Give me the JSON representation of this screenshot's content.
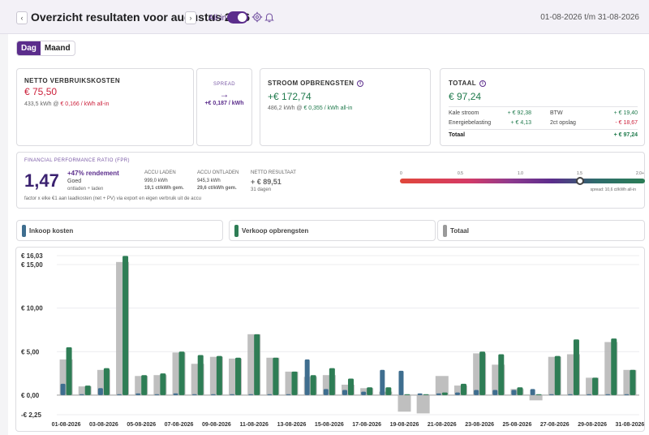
{
  "header": {
    "title": "Overzicht resultaten voor augustus 2026",
    "prev_label": "‹",
    "next_label": "›",
    "allin_label": "All-in",
    "date_range": "01-08-2026 t/m 31-08-2026"
  },
  "view_tabs": [
    {
      "label": "Dag",
      "active": true
    },
    {
      "label": "Maand",
      "active": false
    }
  ],
  "kosten": {
    "title": "NETTO VERBRUIKSKOSTEN",
    "value": "€ 75,50",
    "detail_a": "433,5 kWh @ ",
    "detail_b": "€ 0,166 / kWh all-in"
  },
  "spread": {
    "title": "SPREAD",
    "arrow": "→",
    "value": "+€ 0,187 / kWh"
  },
  "opbrengsten": {
    "title": "STROOM OPBRENGSTEN",
    "value": "+€ 172,74",
    "detail_a": "486,2 kWh @ ",
    "detail_b": "€ 0,355 / kWh all-in"
  },
  "totaal": {
    "title": "TOTAAL",
    "value": "€ 97,24",
    "rows": [
      {
        "label": "Kale stroom",
        "value": "+ € 92,38",
        "label2": "BTW",
        "value2": "+ € 19,40"
      },
      {
        "label": "Energiebelasting",
        "value": "+ € 4,13",
        "label2": "2ct opslag",
        "value2": "- € 18,67"
      }
    ],
    "total_label": "Totaal",
    "total_value": "+ € 97,24"
  },
  "fpr": {
    "title": "FINANCIAL PERFORMANCE RATIO (FPR)",
    "ratio": "1,47",
    "rendement": "+47% rendement",
    "rating": "Goed",
    "subline": "ontladen ÷ laden",
    "footnote": "factor x elke €1 aan laadkosten (net + PV) via export en eigen verbruik uit de accu",
    "accu_laden_label": "ACCU LADEN",
    "accu_laden_kwh": "999,0 kWh",
    "accu_laden_price": "19,1 ct/kWh gem.",
    "accu_ontladen_label": "ACCU ONTLADEN",
    "accu_ontladen_kwh": "945,3 kWh",
    "accu_ontladen_price": "29,6 ct/kWh gem.",
    "netto_label": "NETTO RESULTAAT",
    "netto_value": "+ € 89,51",
    "netto_days": "31 dagen",
    "scale_ticks": [
      "0",
      "0.5",
      "1.0",
      "1.5",
      "2.0+"
    ],
    "scale_note": "spread: 10,6 ct/kWh all-in",
    "marker_value": 1.47
  },
  "legend": [
    {
      "label": "Inkoop kosten",
      "color": "#3f6e8f"
    },
    {
      "label": "Verkoop opbrengsten",
      "color": "#2e7d55"
    },
    {
      "label": "Totaal",
      "color": "#9a9a9a"
    }
  ],
  "chart_data": {
    "type": "bar",
    "x": [
      "01-08-2026",
      "02-08-2026",
      "03-08-2026",
      "04-08-2026",
      "05-08-2026",
      "06-08-2026",
      "07-08-2026",
      "08-08-2026",
      "09-08-2026",
      "10-08-2026",
      "11-08-2026",
      "12-08-2026",
      "13-08-2026",
      "14-08-2026",
      "15-08-2026",
      "16-08-2026",
      "17-08-2026",
      "18-08-2026",
      "19-08-2026",
      "20-08-2026",
      "21-08-2026",
      "22-08-2026",
      "23-08-2026",
      "24-08-2026",
      "25-08-2026",
      "26-08-2026",
      "27-08-2026",
      "28-08-2026",
      "29-08-2026",
      "30-08-2026",
      "31-08-2026"
    ],
    "tick_labels": [
      "01-08-2026",
      "03-08-2026",
      "05-08-2026",
      "07-08-2026",
      "09-08-2026",
      "11-08-2026",
      "13-08-2026",
      "15-08-2026",
      "17-08-2026",
      "19-08-2026",
      "21-08-2026",
      "23-08-2026",
      "25-08-2026",
      "27-08-2026",
      "29-08-2026",
      "31-08-2026"
    ],
    "y_ticks": [
      {
        "value": 16.03,
        "label": "€ 16,03"
      },
      {
        "value": 15,
        "label": "€ 15,00"
      },
      {
        "value": 10,
        "label": "€ 10,00"
      },
      {
        "value": 5,
        "label": "€ 5,00"
      },
      {
        "value": 0,
        "label": "€ 0,00"
      },
      {
        "value": -2.25,
        "label": "-€ 2,25"
      }
    ],
    "ylim": [
      -2.25,
      16.03
    ],
    "series": [
      {
        "name": "Inkoop kosten",
        "color": "#3f6e8f",
        "values": [
          1.3,
          0.1,
          0.8,
          0.1,
          0.2,
          0.1,
          0.2,
          0.1,
          0.1,
          0.1,
          0.1,
          0.1,
          0.1,
          4.1,
          0.7,
          0.6,
          0.4,
          2.9,
          2.8,
          0.2,
          0.2,
          0.3,
          0.6,
          0.6,
          0.6,
          0.7,
          0.1,
          0.1,
          0.1,
          0.1,
          0.1
        ]
      },
      {
        "name": "Verkoop opbrengsten",
        "color": "#2e7d55",
        "values": [
          5.5,
          1.1,
          3.1,
          16.0,
          2.3,
          2.5,
          5.0,
          4.6,
          4.5,
          4.3,
          7.0,
          4.3,
          2.7,
          2.3,
          3.1,
          1.9,
          0.9,
          0.9,
          0.1,
          0.1,
          0.3,
          1.3,
          5.0,
          4.7,
          0.9,
          0.1,
          4.5,
          6.4,
          2.0,
          6.5,
          2.9
        ]
      },
      {
        "name": "Totaal",
        "color": "#b4b4b4",
        "values": [
          4.1,
          1.0,
          2.9,
          15.3,
          2.2,
          2.3,
          4.9,
          3.6,
          4.4,
          4.2,
          7.0,
          4.3,
          2.7,
          2.1,
          2.3,
          1.2,
          0.8,
          0.4,
          -1.9,
          -2.1,
          2.2,
          1.1,
          4.8,
          3.5,
          0.7,
          -0.6,
          4.4,
          4.7,
          2.0,
          6.1,
          2.9
        ]
      }
    ]
  }
}
